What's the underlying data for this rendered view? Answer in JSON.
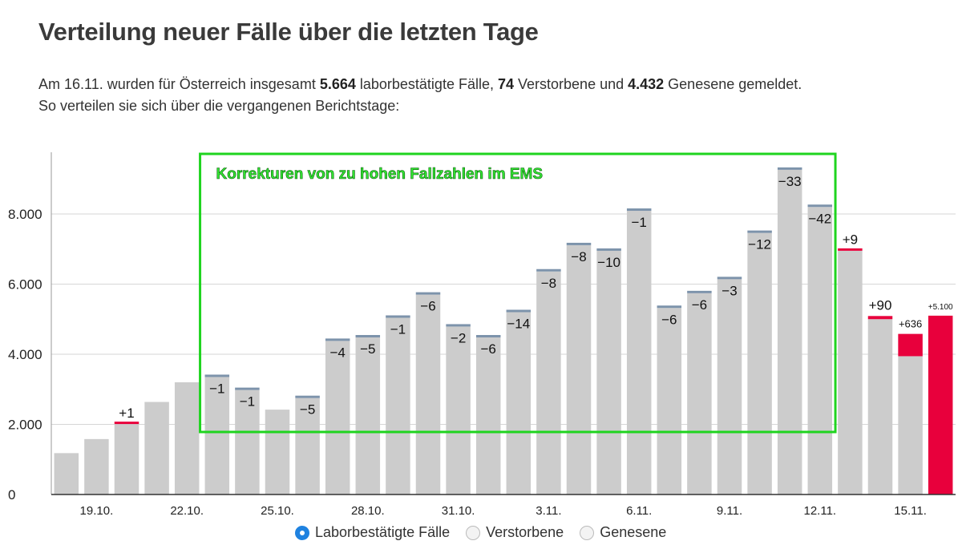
{
  "header": {
    "title": "Verteilung neuer Fälle über die letzten Tage",
    "line1_a": "Am 16.11. wurden für Österreich insgesamt ",
    "cases": "5.664",
    "line1_b": " laborbestätigte Fälle, ",
    "deaths": "74",
    "line1_c": " Verstorbene und ",
    "recovered": "4.432",
    "line1_d": " Genesene gemeldet.",
    "line2": "So verteilen sie sich über die vergangenen Berichtstage:"
  },
  "legend": {
    "items": [
      {
        "label": "Laborbestätigte Fälle",
        "selected": true
      },
      {
        "label": "Verstorbene",
        "selected": false
      },
      {
        "label": "Genesene",
        "selected": false
      }
    ]
  },
  "colors": {
    "bar": "#cccccc",
    "increase": "#e8003c",
    "decrease": "#7d93ab",
    "annotation_box": "#1fd41f",
    "annotation_text": "#33e633",
    "grid": "#d6d6d6",
    "axis_text": "#222222"
  },
  "chart_data": {
    "type": "bar",
    "title": "Verteilung neuer Fälle über die letzten Tage",
    "xlabel": "",
    "ylabel": "",
    "ylim": [
      0,
      9700
    ],
    "yticks": [
      0,
      2000,
      4000,
      6000,
      8000
    ],
    "ytick_labels": [
      "0",
      "2.000",
      "4.000",
      "6.000",
      "8.000"
    ],
    "legend_position": "bottom",
    "grid": true,
    "categories": [
      "18.10.",
      "19.10.",
      "20.10.",
      "21.10.",
      "22.10.",
      "23.10.",
      "24.10.",
      "25.10.",
      "26.10.",
      "27.10.",
      "28.10.",
      "29.10.",
      "30.10.",
      "31.10.",
      "1.11.",
      "2.11.",
      "3.11.",
      "4.11.",
      "5.11.",
      "6.11.",
      "7.11.",
      "8.11.",
      "9.11.",
      "10.11.",
      "11.11.",
      "12.11.",
      "13.11.",
      "14.11.",
      "15.11.",
      "16.11."
    ],
    "tick_labels": [
      "",
      "19.10.",
      "",
      "",
      "22.10.",
      "",
      "",
      "25.10.",
      "",
      "",
      "28.10.",
      "",
      "",
      "31.10.",
      "",
      "",
      "3.11.",
      "",
      "",
      "6.11.",
      "",
      "",
      "9.11.",
      "",
      "",
      "12.11.",
      "",
      "",
      "15.11.",
      ""
    ],
    "values": [
      1180,
      1580,
      2010,
      2640,
      3200,
      3350,
      2980,
      2420,
      2750,
      4380,
      4480,
      5040,
      5700,
      4790,
      4480,
      5200,
      6360,
      7110,
      6950,
      8090,
      5320,
      5740,
      6140,
      7460,
      9260,
      8200,
      6960,
      5090,
      4580,
      5100
    ],
    "changes": [
      null,
      null,
      1,
      null,
      null,
      -1,
      -1,
      null,
      -5,
      -4,
      -5,
      -1,
      -6,
      -2,
      -6,
      -14,
      -8,
      -8,
      -10,
      -1,
      -6,
      -6,
      -3,
      -12,
      -33,
      -42,
      9,
      90,
      636,
      5100
    ],
    "change_labels": [
      "",
      "",
      "+1",
      "",
      "",
      "−1",
      "−1",
      "",
      "−5",
      "−4",
      "−5",
      "−1",
      "−6",
      "−2",
      "−6",
      "−14",
      "−8",
      "−8",
      "−10",
      "−1",
      "−6",
      "−6",
      "−3",
      "−12",
      "−33",
      "−42",
      "+9",
      "+90",
      "+636",
      "+5.100"
    ],
    "annotation": {
      "text": "Korrekturen von zu hohen Fallzahlen im EMS",
      "from_category": "23.10.",
      "to_category": "12.11."
    }
  }
}
